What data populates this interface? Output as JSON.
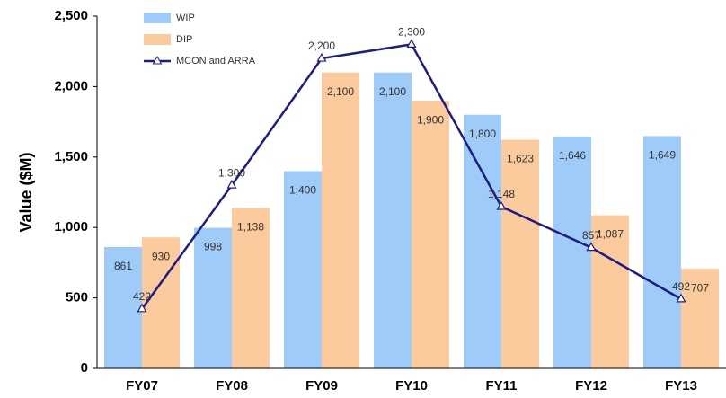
{
  "chart_data": {
    "type": "bar_line",
    "y_label": "Value ($M)",
    "categories": [
      "FY07",
      "FY08",
      "FY09",
      "FY10",
      "FY11",
      "FY12",
      "FY13"
    ],
    "series": [
      {
        "name": "WIP",
        "type": "bar",
        "color": "#9ecbf7",
        "values": [
          861,
          998,
          1400,
          2100,
          1800,
          1646,
          1649
        ],
        "value_labels": [
          "861",
          "998",
          "1,400",
          "2,100",
          "1,800",
          "1,646",
          "1,649"
        ]
      },
      {
        "name": "DIP",
        "type": "bar",
        "color": "#fccb9d",
        "values": [
          930,
          1138,
          2100,
          1900,
          1623,
          1087,
          707
        ],
        "value_labels": [
          "930",
          "1,138",
          "2,100",
          "1,900",
          "1,623",
          "1,087",
          "707"
        ]
      },
      {
        "name": "MCON and ARRA",
        "type": "line",
        "color": "#1c1c86",
        "values": [
          422,
          1300,
          2200,
          2300,
          1148,
          857,
          492
        ],
        "value_labels": [
          "422",
          "1,300",
          "2,200",
          "2,300",
          "1,148",
          "857",
          "492"
        ]
      }
    ],
    "ylim": [
      0,
      2500
    ],
    "yticks": [
      0,
      500,
      {
        "value": 1000,
        "label": "1,000"
      },
      {
        "value": 1500,
        "label": "1,500"
      },
      {
        "value": 2000,
        "label": "2,000"
      },
      {
        "value": 2500,
        "label": "2,500"
      }
    ],
    "legend": "upper left"
  }
}
